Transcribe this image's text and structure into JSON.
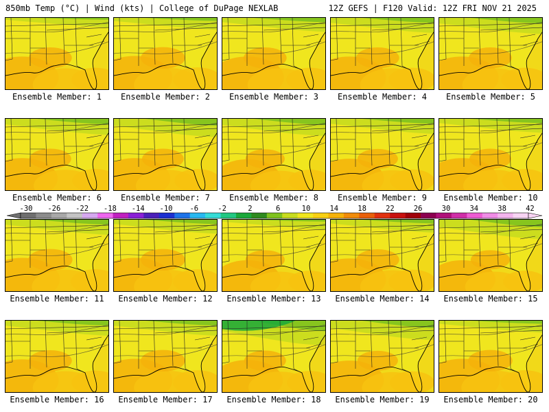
{
  "header": {
    "left": "850mb Temp (°C) | Wind (kts) | College of DuPage NEXLAB",
    "right": "12Z GEFS | F120 Valid: 12Z FRI NOV 21 2025"
  },
  "colorbar": {
    "ticks": [
      "-30",
      "-26",
      "-22",
      "-18",
      "-14",
      "-10",
      "-6",
      "-2",
      "2",
      "6",
      "10",
      "14",
      "18",
      "22",
      "26",
      "30",
      "34",
      "38",
      "42"
    ],
    "colors": [
      "#6f6f6f",
      "#8c8c8c",
      "#a8a8a8",
      "#c4c4c4",
      "#d6a8f0",
      "#ee66ee",
      "#c020c0",
      "#8a1fd6",
      "#4a1fb8",
      "#1c2fd0",
      "#1e73e8",
      "#28b8f0",
      "#36dcd6",
      "#22c882",
      "#1aa83a",
      "#2e8a1e",
      "#7fc21e",
      "#c8dc1e",
      "#f0e61e",
      "#f8d012",
      "#f5b20a",
      "#f08c0a",
      "#e8600a",
      "#e0300e",
      "#c8100e",
      "#a0000a",
      "#8c0050",
      "#b0107a",
      "#d02ea8",
      "#ee5cd2",
      "#f08ce6",
      "#f4b4ee",
      "#f8d4f4"
    ]
  },
  "members": [
    {
      "label": "Ensemble Member: 1",
      "warm": 0.55,
      "cold": 0.15
    },
    {
      "label": "Ensemble Member: 2",
      "warm": 0.6,
      "cold": 0.25
    },
    {
      "label": "Ensemble Member: 3",
      "warm": 0.55,
      "cold": 0.35
    },
    {
      "label": "Ensemble Member: 4",
      "warm": 0.55,
      "cold": 0.4
    },
    {
      "label": "Ensemble Member: 5",
      "warm": 0.55,
      "cold": 0.45
    },
    {
      "label": "Ensemble Member: 6",
      "warm": 0.5,
      "cold": 0.45
    },
    {
      "label": "Ensemble Member: 7",
      "warm": 0.5,
      "cold": 0.55
    },
    {
      "label": "Ensemble Member: 8",
      "warm": 0.4,
      "cold": 0.5
    },
    {
      "label": "Ensemble Member: 9",
      "warm": 0.45,
      "cold": 0.4
    },
    {
      "label": "Ensemble Member: 10",
      "warm": 0.5,
      "cold": 0.35
    },
    {
      "label": "Ensemble Member: 11",
      "warm": 0.6,
      "cold": 0.4
    },
    {
      "label": "Ensemble Member: 12",
      "warm": 0.6,
      "cold": 0.35
    },
    {
      "label": "Ensemble Member: 13",
      "warm": 0.4,
      "cold": 0.15
    },
    {
      "label": "Ensemble Member: 14",
      "warm": 0.55,
      "cold": 0.3
    },
    {
      "label": "Ensemble Member: 15",
      "warm": 0.4,
      "cold": 0.6
    },
    {
      "label": "Ensemble Member: 16",
      "warm": 0.55,
      "cold": 0.4
    },
    {
      "label": "Ensemble Member: 17",
      "warm": 0.6,
      "cold": 0.4
    },
    {
      "label": "Ensemble Member: 18",
      "warm": 0.5,
      "cold": 0.85
    },
    {
      "label": "Ensemble Member: 19",
      "warm": 0.45,
      "cold": 0.6
    },
    {
      "label": "Ensemble Member: 20",
      "warm": 0.6,
      "cold": 0.25
    }
  ]
}
